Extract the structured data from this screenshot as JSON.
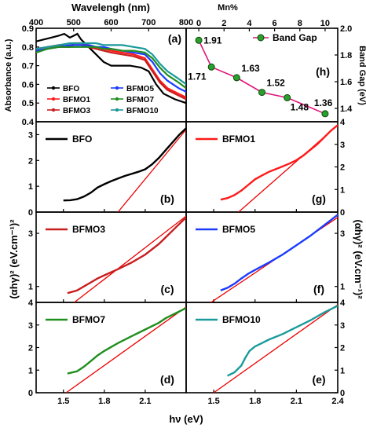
{
  "figure": {
    "top_axis_title": "Wavelengh (nm)",
    "mn_axis_title": "Mn%",
    "left_top_ylabel": "Absorbance (a.u.)",
    "right_top_ylabel": "Band Gap (eV)",
    "bottom_xlabel": "hν (eV)",
    "left_ylabel": "(αhγ)² (eV.cm⁻¹)²",
    "right_ylabel": "(αhγ)² (eV.cm⁻¹)²"
  },
  "colors": {
    "BFO": "#000000",
    "BFMO1": "#ff1a1a",
    "BFMO3": "#c81e1e",
    "BFMO5": "#1a3cff",
    "BFMO7": "#1f8f1f",
    "BFMO10": "#1a9a9a",
    "fit": "#ee0000",
    "bandgap": "#e0147a"
  },
  "chart_data": [
    {
      "panel": "(a)",
      "type": "line",
      "xlabel": "Wavelengh (nm)",
      "ylabel": "Absorbance (a.u.)",
      "xlim": [
        400,
        800
      ],
      "ylim": [
        0.4,
        0.9
      ],
      "x_ticks": [
        400,
        500,
        600,
        700,
        800
      ],
      "y_ticks": [
        0.4,
        0.5,
        0.6,
        0.7,
        0.8,
        0.9
      ],
      "legend": [
        "BFO",
        "BFMO1",
        "BFMO3",
        "BFMO5",
        "BFMO7",
        "BFMO10"
      ],
      "series": [
        {
          "name": "BFO",
          "x": [
            400,
            420,
            440,
            460,
            475,
            490,
            500,
            510,
            520,
            540,
            560,
            580,
            600,
            620,
            650,
            680,
            700,
            720,
            740,
            770,
            800
          ],
          "y": [
            0.83,
            0.84,
            0.85,
            0.86,
            0.87,
            0.85,
            0.86,
            0.87,
            0.84,
            0.8,
            0.76,
            0.72,
            0.7,
            0.7,
            0.7,
            0.69,
            0.67,
            0.6,
            0.55,
            0.52,
            0.5
          ]
        },
        {
          "name": "BFMO1",
          "x": [
            400,
            430,
            460,
            490,
            500,
            520,
            540,
            560,
            580,
            600,
            630,
            660,
            690,
            710,
            730,
            750,
            780,
            800
          ],
          "y": [
            0.79,
            0.8,
            0.81,
            0.8,
            0.82,
            0.82,
            0.81,
            0.8,
            0.79,
            0.78,
            0.77,
            0.76,
            0.74,
            0.68,
            0.62,
            0.58,
            0.55,
            0.53
          ]
        },
        {
          "name": "BFMO3",
          "x": [
            400,
            430,
            460,
            490,
            500,
            520,
            540,
            560,
            580,
            600,
            630,
            660,
            690,
            710,
            730,
            750,
            780,
            800
          ],
          "y": [
            0.78,
            0.79,
            0.8,
            0.8,
            0.81,
            0.81,
            0.8,
            0.79,
            0.78,
            0.77,
            0.76,
            0.75,
            0.73,
            0.67,
            0.61,
            0.57,
            0.54,
            0.52
          ]
        },
        {
          "name": "BFMO5",
          "x": [
            400,
            430,
            460,
            490,
            500,
            520,
            540,
            560,
            580,
            600,
            630,
            660,
            690,
            710,
            730,
            750,
            780,
            800
          ],
          "y": [
            0.78,
            0.79,
            0.8,
            0.81,
            0.81,
            0.81,
            0.81,
            0.8,
            0.8,
            0.79,
            0.78,
            0.77,
            0.76,
            0.72,
            0.66,
            0.62,
            0.58,
            0.56
          ]
        },
        {
          "name": "BFMO7",
          "x": [
            400,
            430,
            460,
            490,
            500,
            520,
            540,
            560,
            580,
            600,
            630,
            660,
            690,
            710,
            730,
            750,
            780,
            800
          ],
          "y": [
            0.77,
            0.79,
            0.8,
            0.8,
            0.8,
            0.8,
            0.8,
            0.8,
            0.79,
            0.79,
            0.78,
            0.78,
            0.77,
            0.74,
            0.69,
            0.65,
            0.61,
            0.58
          ]
        },
        {
          "name": "BFMO10",
          "x": [
            400,
            430,
            460,
            490,
            500,
            520,
            540,
            560,
            580,
            600,
            630,
            660,
            690,
            710,
            730,
            750,
            780,
            800
          ],
          "y": [
            0.79,
            0.8,
            0.81,
            0.82,
            0.82,
            0.82,
            0.82,
            0.82,
            0.81,
            0.81,
            0.81,
            0.8,
            0.79,
            0.76,
            0.71,
            0.67,
            0.63,
            0.6
          ]
        }
      ]
    },
    {
      "panel": "(h)",
      "type": "line",
      "xlabel": "Mn%",
      "ylabel": "Band Gap (eV)",
      "xlim": [
        -1,
        11
      ],
      "ylim": [
        1.3,
        2.0
      ],
      "x_ticks": [
        0,
        2,
        4,
        6,
        8,
        10
      ],
      "y_ticks": [
        1.4,
        1.6,
        1.8,
        2.0
      ],
      "legend": [
        "Band Gap"
      ],
      "series": [
        {
          "name": "Band Gap",
          "x": [
            0,
            1,
            3,
            5,
            7,
            10
          ],
          "y": [
            1.91,
            1.71,
            1.63,
            1.52,
            1.48,
            1.36
          ],
          "labels": [
            "1.91",
            "1.71",
            "1.63",
            "1.52",
            "1.48",
            "1.36"
          ]
        }
      ]
    },
    {
      "panel": "(b)",
      "type": "line",
      "sample": "BFO",
      "xlim": [
        1.3,
        2.4
      ],
      "ylim": [
        0,
        3.5
      ],
      "y_ticks": [
        0,
        1,
        2,
        3
      ],
      "curve": {
        "x": [
          1.5,
          1.55,
          1.6,
          1.65,
          1.7,
          1.75,
          1.8,
          1.85,
          1.9,
          1.95,
          2.0,
          2.05,
          2.1,
          2.15,
          2.2,
          2.25,
          2.3,
          2.35,
          2.4
        ],
        "y": [
          0.45,
          0.46,
          0.5,
          0.6,
          0.75,
          0.95,
          1.08,
          1.2,
          1.3,
          1.4,
          1.48,
          1.56,
          1.66,
          1.85,
          2.1,
          2.4,
          2.7,
          3.0,
          3.25
        ]
      },
      "fit": {
        "x": [
          1.9,
          2.4
        ],
        "y": [
          0,
          3.2
        ]
      }
    },
    {
      "panel": "(g)",
      "type": "line",
      "sample": "BFMO1",
      "xlim": [
        1.3,
        2.4
      ],
      "ylim": [
        0,
        4
      ],
      "y_ticks": [
        0,
        1,
        2,
        3,
        4
      ],
      "curve": {
        "x": [
          1.55,
          1.6,
          1.65,
          1.7,
          1.75,
          1.8,
          1.85,
          1.9,
          1.95,
          2.0,
          2.05,
          2.1,
          2.15,
          2.2,
          2.25,
          2.3,
          2.35,
          2.4
        ],
        "y": [
          0.55,
          0.62,
          0.75,
          0.95,
          1.2,
          1.45,
          1.62,
          1.78,
          1.9,
          2.02,
          2.15,
          2.3,
          2.5,
          2.75,
          3.0,
          3.3,
          3.6,
          3.85
        ]
      },
      "fit": {
        "x": [
          1.68,
          2.4
        ],
        "y": [
          0,
          3.85
        ]
      }
    },
    {
      "panel": "(c)",
      "type": "line",
      "sample": "BFMO3",
      "xlim": [
        1.3,
        2.4
      ],
      "ylim": [
        0.4,
        3.8
      ],
      "y_ticks": [
        1,
        3
      ],
      "curve": {
        "x": [
          1.53,
          1.6,
          1.65,
          1.7,
          1.75,
          1.8,
          1.9,
          2.0,
          2.1,
          2.2,
          2.25,
          2.3,
          2.35,
          2.4
        ],
        "y": [
          0.75,
          0.85,
          1.0,
          1.15,
          1.3,
          1.42,
          1.65,
          1.9,
          2.2,
          2.6,
          2.85,
          3.1,
          3.35,
          3.6
        ]
      },
      "fit": {
        "x": [
          1.58,
          2.4
        ],
        "y": [
          0.4,
          3.65
        ]
      }
    },
    {
      "panel": "(f)",
      "type": "line",
      "sample": "BFMO5",
      "xlim": [
        1.3,
        2.4
      ],
      "ylim": [
        0.4,
        3.8
      ],
      "y_ticks": [
        1,
        3
      ],
      "curve": {
        "x": [
          1.55,
          1.6,
          1.65,
          1.7,
          1.75,
          1.8,
          1.9,
          2.0,
          2.1,
          2.2,
          2.3,
          2.4
        ],
        "y": [
          0.85,
          0.95,
          1.1,
          1.3,
          1.48,
          1.62,
          1.9,
          2.2,
          2.55,
          2.9,
          3.3,
          3.7
        ]
      },
      "fit": {
        "x": [
          1.48,
          2.4
        ],
        "y": [
          0.4,
          3.6
        ]
      }
    },
    {
      "panel": "(d)",
      "type": "line",
      "sample": "BFMO7",
      "xlim": [
        1.3,
        2.4
      ],
      "ylim": [
        0,
        4
      ],
      "y_ticks": [
        0,
        1,
        2,
        3,
        4
      ],
      "curve": {
        "x": [
          1.53,
          1.6,
          1.65,
          1.7,
          1.75,
          1.8,
          1.9,
          2.0,
          2.1,
          2.2,
          2.25,
          2.3,
          2.35,
          2.4
        ],
        "y": [
          0.85,
          0.95,
          1.15,
          1.4,
          1.65,
          1.85,
          2.2,
          2.5,
          2.8,
          3.1,
          3.3,
          3.45,
          3.6,
          3.75
        ]
      },
      "fit": {
        "x": [
          1.52,
          2.4
        ],
        "y": [
          0,
          3.8
        ]
      }
    },
    {
      "panel": "(e)",
      "type": "line",
      "sample": "BFMO10",
      "xlim": [
        1.3,
        2.4
      ],
      "ylim": [
        0,
        4
      ],
      "y_ticks": [
        0,
        1,
        2,
        3,
        4
      ],
      "curve": {
        "x": [
          1.6,
          1.65,
          1.7,
          1.73,
          1.76,
          1.8,
          1.85,
          1.9,
          2.0,
          2.1,
          2.2,
          2.3,
          2.4
        ],
        "y": [
          0.75,
          0.9,
          1.2,
          1.55,
          1.85,
          2.05,
          2.2,
          2.35,
          2.6,
          2.9,
          3.2,
          3.55,
          3.85
        ]
      },
      "fit": {
        "x": [
          1.5,
          2.4
        ],
        "y": [
          0,
          3.9
        ]
      }
    }
  ],
  "bottom_axis": {
    "ticks": [
      "1.5",
      "1.8",
      "2.1",
      "2.4"
    ],
    "tick_values": [
      1.5,
      1.8,
      2.1,
      2.4
    ]
  }
}
